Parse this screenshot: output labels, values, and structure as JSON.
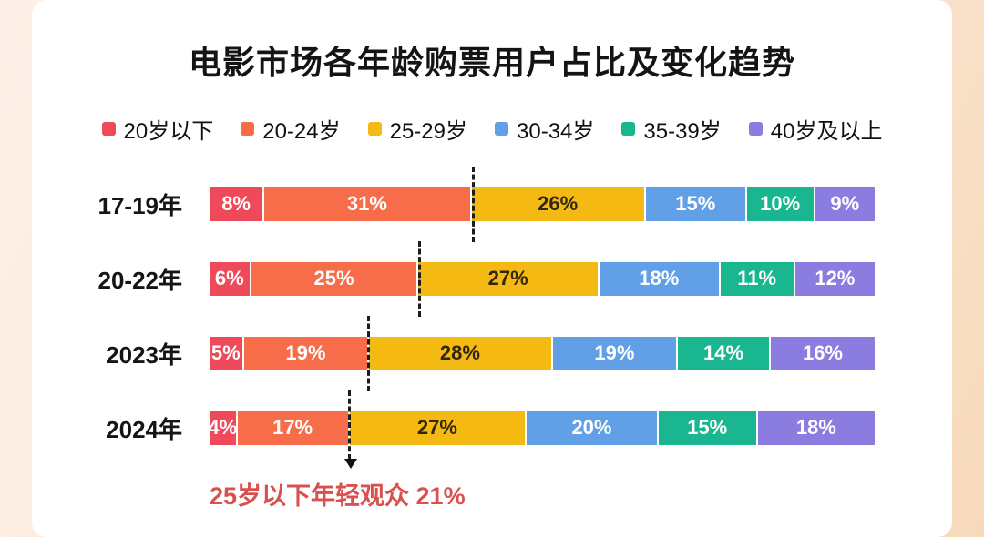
{
  "chart_data": {
    "type": "bar",
    "variant": "horizontal-stacked-percent",
    "title": "电影市场各年龄购票用户占比及变化趋势",
    "legend_position": "top",
    "grid": false,
    "value_suffix": "%",
    "categories": [
      "17-19年",
      "20-22年",
      "2023年",
      "2024年"
    ],
    "series": [
      {
        "name": "20岁以下",
        "color": "#ee4a59",
        "label_color": "#ffffff",
        "values": [
          8,
          6,
          5,
          4
        ]
      },
      {
        "name": "20-24岁",
        "color": "#f76c49",
        "label_color": "#ffffff",
        "values": [
          31,
          25,
          19,
          17
        ]
      },
      {
        "name": "25-29岁",
        "color": "#f5b914",
        "label_color": "#33270a",
        "values": [
          26,
          27,
          28,
          27
        ]
      },
      {
        "name": "30-34岁",
        "color": "#61a0e6",
        "label_color": "#ffffff",
        "values": [
          15,
          18,
          19,
          20
        ]
      },
      {
        "name": "35-39岁",
        "color": "#19b68f",
        "label_color": "#ffffff",
        "values": [
          10,
          11,
          14,
          15
        ]
      },
      {
        "name": "40岁及以上",
        "color": "#8b7ce0",
        "label_color": "#ffffff",
        "values": [
          9,
          12,
          16,
          18
        ]
      }
    ],
    "trend_marker": {
      "boundary_after_series": "20-24岁",
      "line_color": "#1c1c1c",
      "arrow_on_last_row": true,
      "annotation": "25岁以下年轻观众 21%",
      "annotation_color": "#d9514f"
    }
  }
}
